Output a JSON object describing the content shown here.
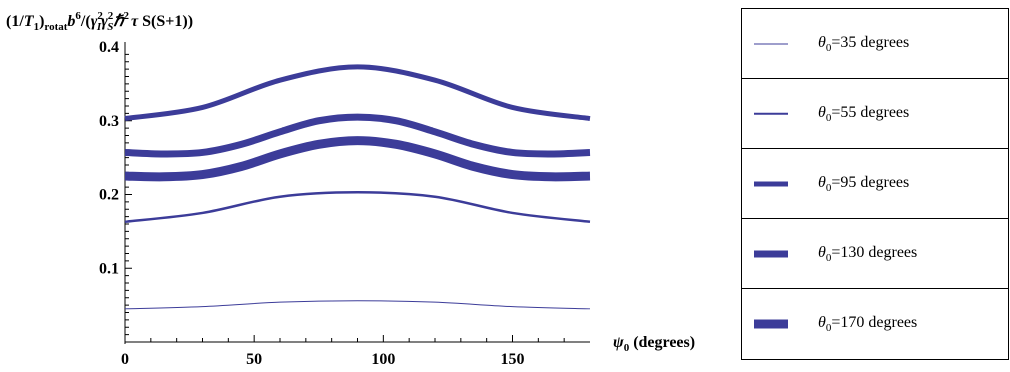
{
  "chart_data": {
    "type": "line",
    "ylabel_parts": {
      "open": "(1/",
      "t": "T",
      "t_sub": "1",
      "close": ")",
      "sub": "rotat",
      "b": "b",
      "b_exp": "6",
      "slash": "/(",
      "gamma1": "γ",
      "gamma1_exp": "2",
      "gamma1_sub": "I",
      "gamma2": "γ",
      "gamma2_exp": "2",
      "gamma2_sub": "S",
      "hbar": "ℏ",
      "hbar_exp": "2",
      "tau": "τ",
      "tail": " S(S+1))"
    },
    "xlabel_symbol": "ψ",
    "xlabel_sub": "0",
    "xlabel_tail": " (degrees)",
    "xlim": [
      0,
      180
    ],
    "ylim": [
      0,
      0.4
    ],
    "xticks": [
      0,
      50,
      100,
      150
    ],
    "xtick_labels": [
      "0",
      "50",
      "100",
      "150"
    ],
    "yticks": [
      0.1,
      0.2,
      0.3,
      0.4
    ],
    "ytick_labels": [
      "0.1",
      "0.2",
      "0.3",
      "0.4"
    ],
    "color": "#3c3c99",
    "grid": false,
    "legend_position": "right",
    "series": [
      {
        "name": "θ0=35 degrees",
        "theta_symbol": "θ",
        "theta_sub": "0",
        "value_text": "=35 degrees",
        "stroke": 1,
        "x": [
          0,
          30,
          60,
          90,
          120,
          150,
          180
        ],
        "values": [
          0.045,
          0.048,
          0.054,
          0.056,
          0.054,
          0.048,
          0.045
        ]
      },
      {
        "name": "θ0=55 degrees",
        "theta_symbol": "θ",
        "theta_sub": "0",
        "value_text": "=55 degrees",
        "stroke": 2.5,
        "x": [
          0,
          30,
          60,
          90,
          120,
          150,
          180
        ],
        "values": [
          0.163,
          0.175,
          0.197,
          0.203,
          0.197,
          0.175,
          0.163
        ]
      },
      {
        "name": "θ0=95 degrees",
        "theta_symbol": "θ",
        "theta_sub": "0",
        "value_text": "=95 degrees",
        "stroke": 5,
        "x": [
          0,
          30,
          60,
          90,
          120,
          150,
          180
        ],
        "values": [
          0.303,
          0.318,
          0.355,
          0.373,
          0.355,
          0.318,
          0.303
        ]
      },
      {
        "name": "θ0=130 degrees",
        "theta_symbol": "θ",
        "theta_sub": "0",
        "value_text": "=130 degrees",
        "stroke": 7,
        "x": [
          0,
          15,
          30,
          45,
          60,
          75,
          90,
          105,
          120,
          135,
          150,
          165,
          180
        ],
        "values": [
          0.257,
          0.255,
          0.257,
          0.268,
          0.285,
          0.3,
          0.305,
          0.3,
          0.285,
          0.268,
          0.257,
          0.255,
          0.257
        ]
      },
      {
        "name": "θ0=170 degrees",
        "theta_symbol": "θ",
        "theta_sub": "0",
        "value_text": "=170 degrees",
        "stroke": 9,
        "x": [
          0,
          15,
          30,
          45,
          60,
          75,
          90,
          105,
          120,
          135,
          150,
          165,
          180
        ],
        "values": [
          0.225,
          0.224,
          0.227,
          0.238,
          0.255,
          0.268,
          0.273,
          0.268,
          0.255,
          0.238,
          0.227,
          0.224,
          0.225
        ]
      }
    ]
  }
}
